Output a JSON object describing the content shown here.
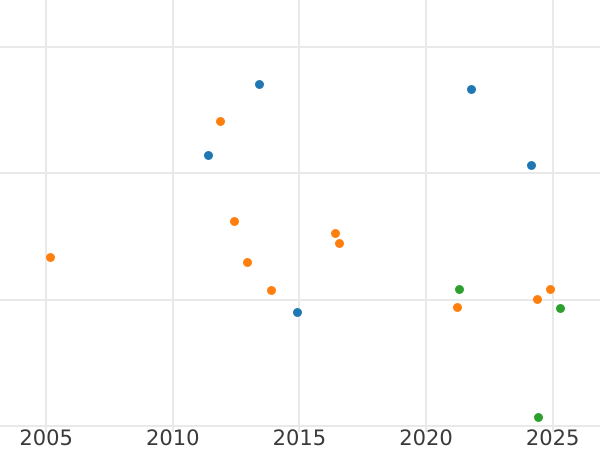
{
  "chart_data": {
    "type": "scatter",
    "title": "",
    "xlabel": "",
    "ylabel": "",
    "legend": "none",
    "grid": true,
    "background_color": "#ffffff",
    "gridline_color": "#e9e9e9",
    "tick_label_color": "#3a3a3a",
    "marker_diameter_px": 9,
    "x_tick_labels": [
      "2005",
      "2010",
      "2015",
      "2020",
      "2025"
    ],
    "x_tick_values": [
      2005,
      2010,
      2015,
      2020,
      2025
    ],
    "xlim": [
      2003.18,
      2026.87
    ],
    "ylim": [
      -0.19,
      3.37
    ],
    "y_axis_note": "y-axis tick labels are cropped out of the visible image; y values are measured in gridline units where the bottom visible gridline = 0 and each gridline step = 1",
    "y_gridline_values": [
      0,
      1,
      2,
      3
    ],
    "series": [
      {
        "name": "series-blue",
        "color": "#1f77b4",
        "points": [
          [
            2011.42,
            2.14
          ],
          [
            2013.41,
            2.7
          ],
          [
            2014.93,
            0.9
          ],
          [
            2021.78,
            2.66
          ],
          [
            2024.15,
            2.06
          ]
        ]
      },
      {
        "name": "series-orange",
        "color": "#ff7f0e",
        "points": [
          [
            2005.17,
            1.33
          ],
          [
            2011.88,
            2.41
          ],
          [
            2012.42,
            1.62
          ],
          [
            2012.94,
            1.29
          ],
          [
            2013.88,
            1.07
          ],
          [
            2016.44,
            1.52
          ],
          [
            2016.57,
            1.44
          ],
          [
            2021.26,
            0.94
          ],
          [
            2024.39,
            1.0
          ],
          [
            2024.9,
            1.08
          ]
        ]
      },
      {
        "name": "series-green",
        "color": "#2ca02c",
        "points": [
          [
            2021.32,
            1.08
          ],
          [
            2024.44,
            0.07
          ],
          [
            2025.3,
            0.93
          ]
        ]
      }
    ]
  }
}
